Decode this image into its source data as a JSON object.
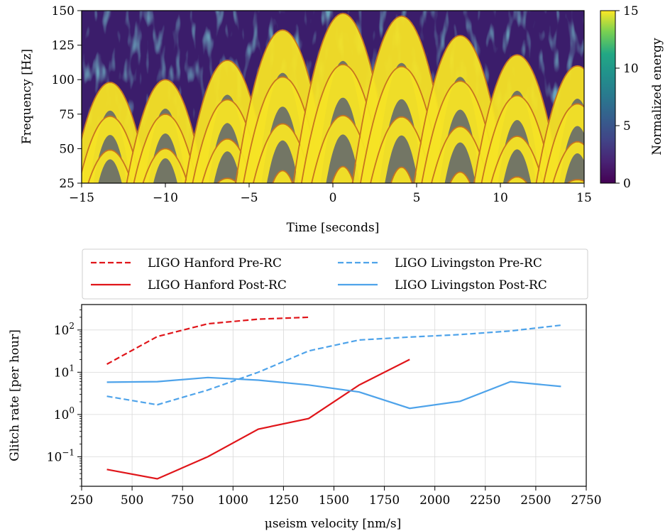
{
  "chart_data": [
    {
      "type": "heatmap",
      "title": "",
      "xlabel": "Time [seconds]",
      "ylabel": "Frequency [Hz]",
      "xlim": [
        -15,
        15
      ],
      "ylim": [
        25,
        150
      ],
      "xticks": [
        -15,
        -10,
        -5,
        0,
        5,
        10,
        15
      ],
      "yticks": [
        25,
        50,
        75,
        100,
        125,
        150
      ],
      "colorbar": {
        "label": "Normalized energy",
        "range": [
          0,
          15
        ],
        "ticks": [
          0,
          5,
          10,
          15
        ],
        "colormap": "viridis"
      },
      "arches": [
        {
          "center": -13.3,
          "fundamental_peak": 49
        },
        {
          "center": -10.0,
          "fundamental_peak": 50
        },
        {
          "center": -6.3,
          "fundamental_peak": 57
        },
        {
          "center": -3.0,
          "fundamental_peak": 68
        },
        {
          "center": 0.6,
          "fundamental_peak": 74
        },
        {
          "center": 4.1,
          "fundamental_peak": 73
        },
        {
          "center": 7.6,
          "fundamental_peak": 66
        },
        {
          "center": 11.0,
          "fundamental_peak": 59
        },
        {
          "center": 14.6,
          "fundamental_peak": 55
        }
      ],
      "harmonics": [
        0.5,
        1,
        1.5,
        2
      ]
    },
    {
      "type": "line",
      "xlabel": "μseism velocity [nm/s]",
      "ylabel": "Glitch rate [per hour]",
      "yscale": "log",
      "xlim": [
        250,
        2750
      ],
      "ylim": [
        0.02,
        400
      ],
      "xticks": [
        250,
        500,
        750,
        1000,
        1250,
        1500,
        1750,
        2000,
        2250,
        2500,
        2750
      ],
      "yticks": [
        {
          "value": 0.1,
          "label": "10",
          "exp": "−1"
        },
        {
          "value": 1,
          "label": "10",
          "exp": "0"
        },
        {
          "value": 10,
          "label": "10",
          "exp": "1"
        },
        {
          "value": 100,
          "label": "10",
          "exp": "2"
        }
      ],
      "grid": true,
      "legend_position": "above",
      "series": [
        {
          "name": "LIGO Hanford Pre-RC",
          "color": "#e0151a",
          "dash": "dashed",
          "x": [
            375,
            625,
            875,
            1125,
            1375
          ],
          "y": [
            15.5,
            70,
            140,
            180,
            200
          ]
        },
        {
          "name": "LIGO Hanford Post-RC",
          "color": "#e0151a",
          "dash": "solid",
          "x": [
            375,
            625,
            875,
            1125,
            1375,
            1625,
            1875
          ],
          "y": [
            0.05,
            0.03,
            0.1,
            0.45,
            0.8,
            5,
            20
          ]
        },
        {
          "name": "LIGO Livingston Pre-RC",
          "color": "#4ea3ea",
          "dash": "dashed",
          "x": [
            375,
            625,
            875,
            1125,
            1375,
            1625,
            1875,
            2125,
            2375,
            2625
          ],
          "y": [
            2.7,
            1.7,
            3.8,
            10,
            32,
            58,
            68,
            78,
            95,
            130
          ]
        },
        {
          "name": "LIGO Livingston Post-RC",
          "color": "#4ea3ea",
          "dash": "solid",
          "x": [
            375,
            625,
            875,
            1125,
            1375,
            1625,
            1875,
            2125,
            2375,
            2625
          ],
          "y": [
            5.8,
            6.0,
            7.5,
            6.5,
            5.0,
            3.4,
            1.4,
            2.05,
            6.0,
            4.6
          ]
        }
      ]
    }
  ]
}
